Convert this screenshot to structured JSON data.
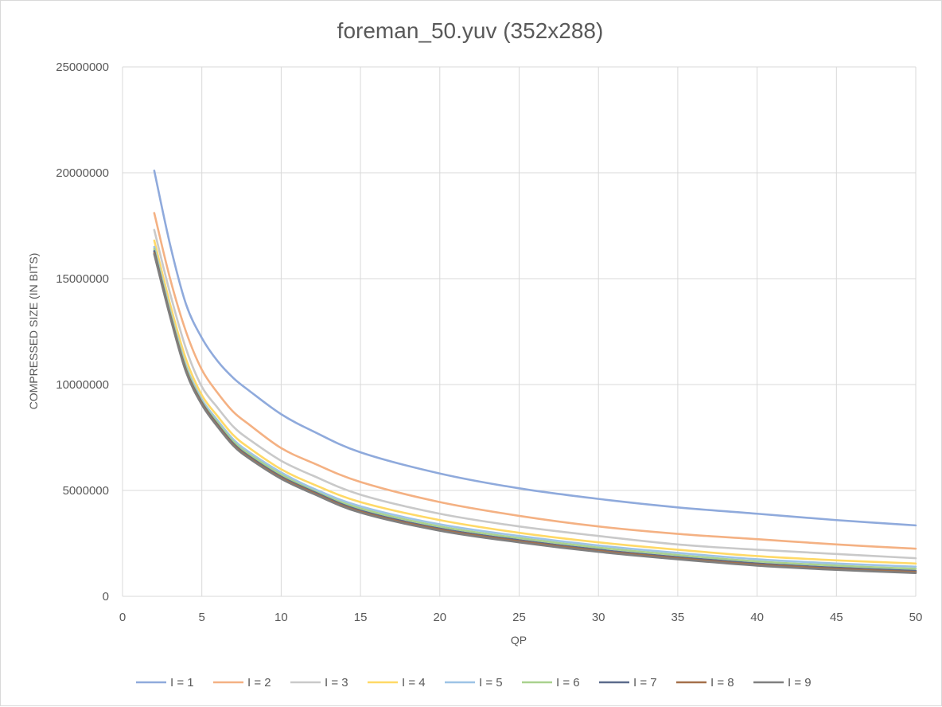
{
  "chart_data": {
    "type": "line",
    "title": "foreman_50.yuv (352x288)",
    "xlabel": "QP",
    "ylabel": "COMPRESSED SIZE (IN BITS)",
    "xlim": [
      0,
      50
    ],
    "ylim": [
      0,
      25000000
    ],
    "x_ticks": [
      "0",
      "5",
      "10",
      "15",
      "20",
      "25",
      "30",
      "35",
      "40",
      "45",
      "50"
    ],
    "y_ticks": [
      "0",
      "5000000",
      "10000000",
      "15000000",
      "20000000",
      "25000000"
    ],
    "grid": true,
    "legend_position": "bottom",
    "x": [
      2,
      3,
      4,
      5,
      6,
      7,
      8,
      10,
      12,
      15,
      20,
      25,
      30,
      35,
      40,
      45,
      50
    ],
    "series": [
      {
        "name": "I = 1",
        "color": "#8faadc",
        "values": [
          20100000,
          16600000,
          13800000,
          12200000,
          11100000,
          10300000,
          9700000,
          8600000,
          7800000,
          6800000,
          5800000,
          5100000,
          4600000,
          4200000,
          3900000,
          3600000,
          3350000
        ]
      },
      {
        "name": "I = 2",
        "color": "#f4b183",
        "values": [
          18100000,
          15000000,
          12500000,
          10700000,
          9600000,
          8700000,
          8100000,
          7000000,
          6300000,
          5400000,
          4450000,
          3800000,
          3300000,
          2950000,
          2700000,
          2450000,
          2250000
        ]
      },
      {
        "name": "I = 3",
        "color": "#c9c9c9",
        "values": [
          17300000,
          14300000,
          11700000,
          9900000,
          8900000,
          8000000,
          7400000,
          6400000,
          5700000,
          4800000,
          3900000,
          3300000,
          2850000,
          2450000,
          2200000,
          2000000,
          1800000
        ]
      },
      {
        "name": "I = 4",
        "color": "#ffd966",
        "values": [
          16800000,
          13800000,
          11200000,
          9500000,
          8500000,
          7600000,
          7000000,
          6000000,
          5300000,
          4450000,
          3600000,
          3000000,
          2550000,
          2200000,
          1900000,
          1700000,
          1550000
        ]
      },
      {
        "name": "I = 5",
        "color": "#9dc3e6",
        "values": [
          16500000,
          13500000,
          10900000,
          9300000,
          8300000,
          7400000,
          6800000,
          5850000,
          5100000,
          4250000,
          3400000,
          2850000,
          2400000,
          2050000,
          1750000,
          1550000,
          1400000
        ]
      },
      {
        "name": "I = 6",
        "color": "#a9d18e",
        "values": [
          16400000,
          13400000,
          10800000,
          9200000,
          8200000,
          7300000,
          6700000,
          5750000,
          5000000,
          4150000,
          3300000,
          2750000,
          2300000,
          1950000,
          1650000,
          1450000,
          1300000
        ]
      },
      {
        "name": "I = 7",
        "color": "#5b6b8c",
        "values": [
          16300000,
          13300000,
          10700000,
          9150000,
          8100000,
          7200000,
          6600000,
          5650000,
          4950000,
          4050000,
          3200000,
          2650000,
          2200000,
          1850000,
          1550000,
          1350000,
          1200000
        ]
      },
      {
        "name": "I = 8",
        "color": "#a5704a",
        "values": [
          16200000,
          13250000,
          10650000,
          9100000,
          8050000,
          7150000,
          6550000,
          5600000,
          4900000,
          4000000,
          3150000,
          2600000,
          2150000,
          1800000,
          1500000,
          1300000,
          1150000
        ]
      },
      {
        "name": "I = 9",
        "color": "#7f7f7f",
        "values": [
          16150000,
          13200000,
          10600000,
          9050000,
          8000000,
          7100000,
          6500000,
          5550000,
          4850000,
          3950000,
          3100000,
          2550000,
          2100000,
          1750000,
          1450000,
          1250000,
          1100000
        ]
      }
    ]
  }
}
